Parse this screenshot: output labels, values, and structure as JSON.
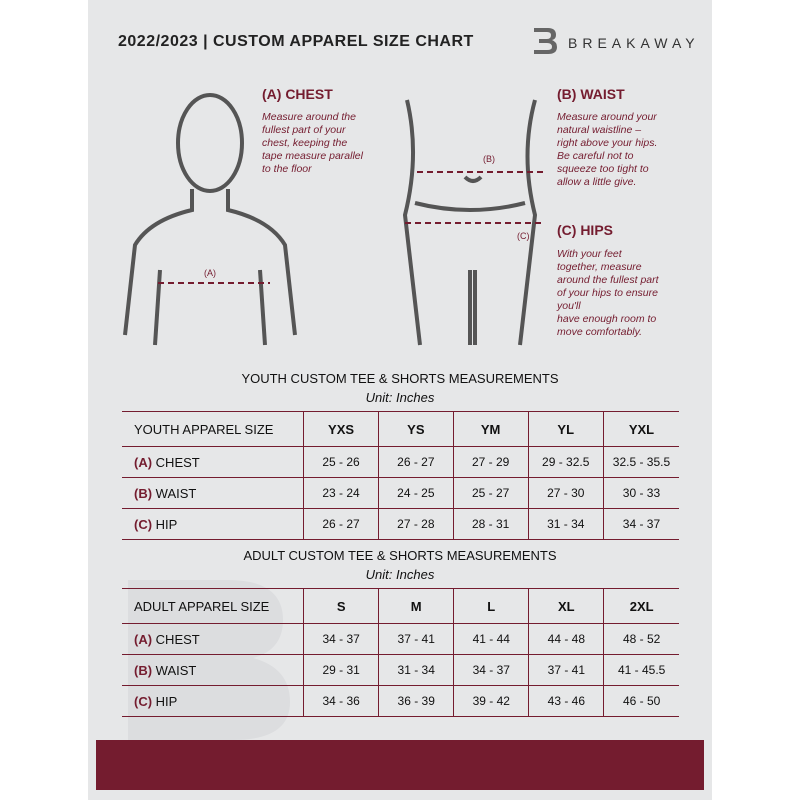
{
  "header": {
    "title": "2022/2023  |  CUSTOM APPAREL SIZE CHART",
    "brand": "BREAKAWAY",
    "logo_letter": "B"
  },
  "chest": {
    "heading": "(A) CHEST",
    "text": "Measure around the\nfullest part of your\nchest, keeping the\ntape measure parallel\nto the floor",
    "marker": "(A)"
  },
  "waist": {
    "heading": "(B) WAIST",
    "text": "Measure around your\nnatural waistline –\nright above your hips.\nBe careful not to\nsqueeze too tight to\nallow a little give.",
    "marker": "(B)"
  },
  "hips": {
    "heading": "(C) HIPS",
    "text": "With your feet\ntogether, measure\naround the fullest part\nof your hips to ensure\nyou'll\nhave enough room to\nmove comfortably.",
    "marker": "(C)"
  },
  "colors": {
    "accent": "#741c2f",
    "background": "#e6e7e8"
  },
  "youth": {
    "title": "YOUTH CUSTOM TEE & SHORTS MEASUREMENTS",
    "unit": "Unit: Inches",
    "size_label": "YOUTH APPAREL SIZE",
    "sizes": [
      "YXS",
      "YS",
      "YM",
      "YL",
      "YXL"
    ],
    "rows": [
      {
        "letter": "(A)",
        "name": "CHEST",
        "values": [
          "25 - 26",
          "26 - 27",
          "27 - 29",
          "29 - 32.5",
          "32.5 - 35.5"
        ]
      },
      {
        "letter": "(B)",
        "name": "WAIST",
        "values": [
          "23 - 24",
          "24 - 25",
          "25 - 27",
          "27 - 30",
          "30 - 33"
        ]
      },
      {
        "letter": "(C)",
        "name": "HIP",
        "values": [
          "26 - 27",
          "27 - 28",
          "28 - 31",
          "31 - 34",
          "34 - 37"
        ]
      }
    ]
  },
  "adult": {
    "title": "ADULT CUSTOM TEE & SHORTS MEASUREMENTS",
    "unit": "Unit: Inches",
    "size_label": "ADULT APPAREL SIZE",
    "sizes": [
      "S",
      "M",
      "L",
      "XL",
      "2XL"
    ],
    "rows": [
      {
        "letter": "(A)",
        "name": "CHEST",
        "values": [
          "34 - 37",
          "37 - 41",
          "41 - 44",
          "44 - 48",
          "48 - 52"
        ]
      },
      {
        "letter": "(B)",
        "name": "WAIST",
        "values": [
          "29 - 31",
          "31 - 34",
          "34 - 37",
          "37 - 41",
          "41 - 45.5"
        ]
      },
      {
        "letter": "(C)",
        "name": "HIP",
        "values": [
          "34 - 36",
          "36 - 39",
          "39 - 42",
          "43 - 46",
          "46 - 50"
        ]
      }
    ]
  }
}
